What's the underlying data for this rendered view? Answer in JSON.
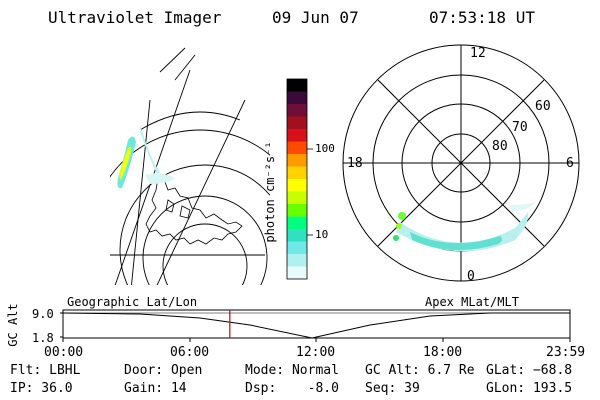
{
  "header": {
    "instrument": "Ultraviolet Imager",
    "date": "09 Jun 07",
    "time": "07:53:18 UT"
  },
  "colorbar": {
    "unit": "photon cm⁻²s⁻¹",
    "ticks": [
      "100",
      "10"
    ],
    "colors": [
      "#000000",
      "#3a0a3a",
      "#6e0f3a",
      "#a0101e",
      "#d8101a",
      "#ff4a00",
      "#ff9a00",
      "#ffd200",
      "#ffff00",
      "#c8ff00",
      "#6aff00",
      "#00ff80",
      "#30e0c0",
      "#70e8e8",
      "#b0f0f0",
      "#e8fafa"
    ]
  },
  "polar_plot": {
    "mlt_labels": [
      "12",
      "18",
      "6",
      "0"
    ],
    "lat_labels": [
      "60",
      "70",
      "80"
    ]
  },
  "timeline": {
    "ylabel": "GC Alt",
    "yticks": [
      "9.0",
      "1.8"
    ],
    "left_label": "Geographic Lat/Lon",
    "right_label": "Apex MLat/MLT",
    "xticks": [
      "00:00",
      "06:00",
      "12:00",
      "18:00",
      "23:59"
    ],
    "current_time_fraction": 0.329,
    "marker_color": "#d00000"
  },
  "status": {
    "flt": "Flt: LBHL",
    "ip": "IP: 36.0",
    "door": "Door: Open",
    "gain": "Gain: 14",
    "mode": "Mode: Normal",
    "dsp": "Dsp:    -8.0",
    "gcalt": "GC Alt: 6.7 Re",
    "seq": "Seq: 39",
    "glat": "GLat: −68.8",
    "glon": "GLon: 193.5"
  }
}
